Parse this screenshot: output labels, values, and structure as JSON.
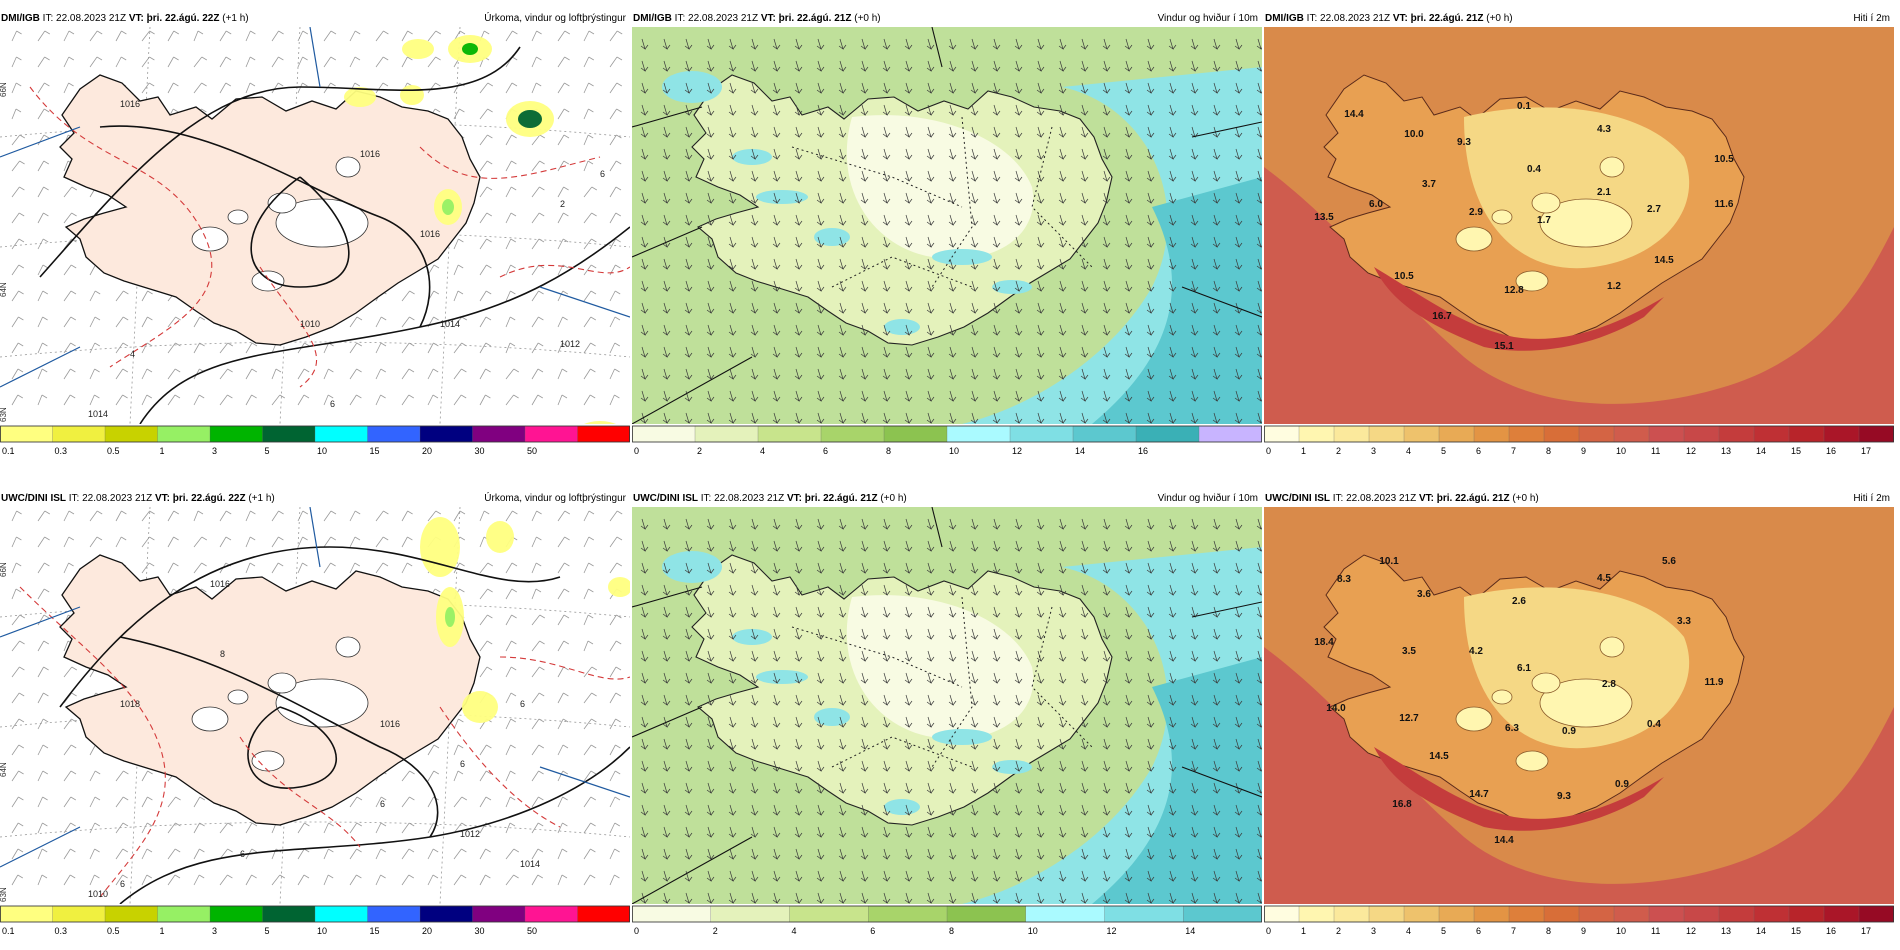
{
  "rows": [
    {
      "model": "DMI/IGB",
      "panels": [
        {
          "model": "DMI/IGB",
          "it_label": "IT:",
          "it": "22.08.2023 21Z",
          "vt_label": "VT:",
          "vt": "þri. 22.ágú. 22Z",
          "lead": "(+1 h)",
          "title": "Úrkoma, vindur og loftþrýstingur",
          "type": "precip"
        },
        {
          "model": "DMI/IGB",
          "it_label": "IT:",
          "it": "22.08.2023 21Z",
          "vt_label": "VT:",
          "vt": "þri. 22.ágú. 21Z",
          "lead": "(+0 h)",
          "title": "Vindur og hviður í 10m",
          "type": "wind"
        },
        {
          "model": "DMI/IGB",
          "it_label": "IT:",
          "it": "22.08.2023 21Z",
          "vt_label": "VT:",
          "vt": "þri. 22.ágú. 21Z",
          "lead": "(+0 h)",
          "title": "Hiti í 2m",
          "type": "temp"
        }
      ],
      "temp_labels": [
        "14.4",
        "10.0",
        "9.3",
        "0.1",
        "4.3",
        "10.5",
        "0.4",
        "2.1",
        "3.7",
        "6.0",
        "13.5",
        "2.9",
        "1.7",
        "2.7",
        "11.6",
        "14.5",
        "10.5",
        "12.8",
        "1.2",
        "16.7",
        "15.1"
      ],
      "pressure_labels": [
        "1016",
        "1016",
        "1016",
        "1014",
        "1012",
        "1014",
        "1010",
        "6",
        "6",
        "4",
        "2"
      ]
    },
    {
      "model": "UWC/DINI ISL",
      "panels": [
        {
          "model": "UWC/DINI ISL",
          "it_label": "IT:",
          "it": "22.08.2023 21Z",
          "vt_label": "VT:",
          "vt": "þri. 22.ágú. 22Z",
          "lead": "(+1 h)",
          "title": "Úrkoma, vindur og loftþrýstingur",
          "type": "precip"
        },
        {
          "model": "UWC/DINI ISL",
          "it_label": "IT:",
          "it": "22.08.2023 21Z",
          "vt_label": "VT:",
          "vt": "þri. 22.ágú. 21Z",
          "lead": "(+0 h)",
          "title": "Vindur og hviður í 10m",
          "type": "wind"
        },
        {
          "model": "UWC/DINI ISL",
          "it_label": "IT:",
          "it": "22.08.2023 21Z",
          "vt_label": "VT:",
          "vt": "þri. 22.ágú. 21Z",
          "lead": "(+0 h)",
          "title": "Hiti í 2m",
          "type": "temp"
        }
      ],
      "temp_labels": [
        "8.3",
        "10.1",
        "3.6",
        "2.6",
        "4.5",
        "5.6",
        "3.3",
        "18.4",
        "3.5",
        "4.2",
        "6.1",
        "2.8",
        "11.9",
        "14.0",
        "12.7",
        "6.3",
        "0.9",
        "0.4",
        "14.5",
        "0.9",
        "16.8",
        "14.7",
        "9.3",
        "14.4"
      ],
      "pressure_labels": [
        "1016",
        "1016",
        "1018",
        "1012",
        "1014",
        "1010",
        "8",
        "6",
        "6",
        "6",
        "6",
        "6"
      ]
    }
  ],
  "lat_labels": {
    "top": "66N",
    "mid": "64N",
    "bot": "63N"
  },
  "colorbars": {
    "precip": {
      "ticks": [
        "0.1",
        "0.3",
        "0.5",
        "1",
        "3",
        "5",
        "10",
        "15",
        "20",
        "30",
        "50"
      ],
      "colors": [
        "#ffff80",
        "#f0f040",
        "#c8d200",
        "#96f064",
        "#00b400",
        "#006432",
        "#00ffff",
        "#3264ff",
        "#000080",
        "#800080",
        "#ff1493",
        "#ff0000"
      ]
    },
    "wind_row1": {
      "ticks": [
        "0",
        "2",
        "4",
        "6",
        "8",
        "10",
        "12",
        "14",
        "16"
      ],
      "colors": [
        "#f8fbe3",
        "#e4f2bb",
        "#c8e48c",
        "#a8d46a",
        "#8cc350",
        "#aafaff",
        "#7fdfe4",
        "#5cc8cf",
        "#3ab0b6",
        "#c8b4ff"
      ]
    },
    "wind_row2": {
      "ticks": [
        "0",
        "2",
        "4",
        "6",
        "8",
        "10",
        "12",
        "14"
      ],
      "colors": [
        "#f8fbe3",
        "#e4f2bb",
        "#c8e48c",
        "#a8d46a",
        "#8cc350",
        "#aafaff",
        "#7fdfe4",
        "#5cc8cf"
      ]
    },
    "temp": {
      "ticks": [
        "0",
        "1",
        "2",
        "3",
        "4",
        "5",
        "6",
        "7",
        "8",
        "9",
        "10",
        "11",
        "12",
        "13",
        "14",
        "15",
        "16",
        "17"
      ],
      "colors": [
        "#fffde0",
        "#fff6b0",
        "#fbe99c",
        "#f5d885",
        "#eec26c",
        "#e8aa55",
        "#e39444",
        "#de7f3a",
        "#d86e38",
        "#d46444",
        "#d05c4c",
        "#cc5050",
        "#c84848",
        "#c43c3c",
        "#bf3034",
        "#b8242a",
        "#aa1628",
        "#960a24"
      ]
    }
  }
}
